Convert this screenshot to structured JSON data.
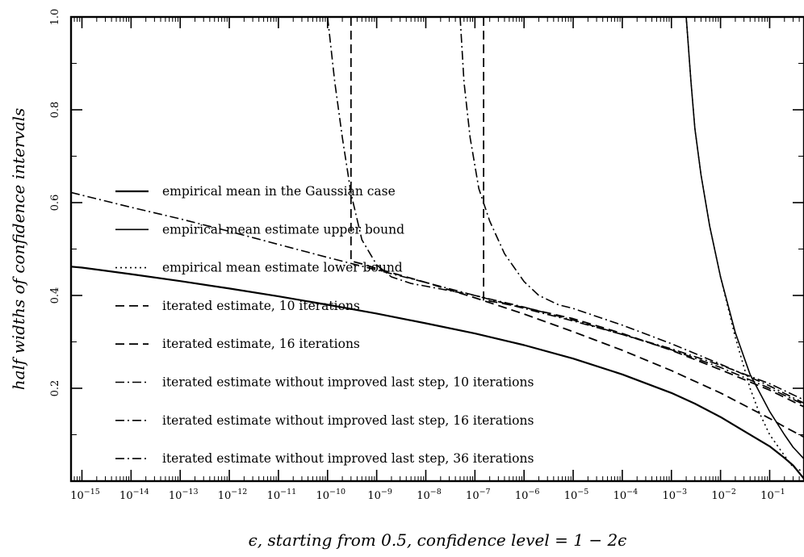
{
  "chart_data": {
    "type": "line",
    "title": "",
    "xlabel": "ϵ, starting from 0.5, confidence level = 1 − 2ϵ",
    "ylabel": "half widths of confidence intervals",
    "x_scale": "log",
    "xlim": [
      6e-16,
      0.5
    ],
    "ylim": [
      0.0,
      1.0
    ],
    "x_ticks": [
      {
        "base": "10",
        "exp": "−15",
        "value": 1e-15
      },
      {
        "base": "10",
        "exp": "−14",
        "value": 1e-14
      },
      {
        "base": "10",
        "exp": "−13",
        "value": 1e-13
      },
      {
        "base": "10",
        "exp": "−12",
        "value": 1e-12
      },
      {
        "base": "10",
        "exp": "−11",
        "value": 1e-11
      },
      {
        "base": "10",
        "exp": "−10",
        "value": 1e-10
      },
      {
        "base": "10",
        "exp": "−9",
        "value": 1e-09
      },
      {
        "base": "10",
        "exp": "−8",
        "value": 1e-08
      },
      {
        "base": "10",
        "exp": "−7",
        "value": 1e-07
      },
      {
        "base": "10",
        "exp": "−6",
        "value": 1e-06
      },
      {
        "base": "10",
        "exp": "−5",
        "value": 1e-05
      },
      {
        "base": "10",
        "exp": "−4",
        "value": 0.0001
      },
      {
        "base": "10",
        "exp": "−3",
        "value": 0.001
      },
      {
        "base": "10",
        "exp": "−2",
        "value": 0.01
      },
      {
        "base": "10",
        "exp": "−1",
        "value": 0.1
      }
    ],
    "y_ticks": [
      {
        "label": "0.2",
        "value": 0.2
      },
      {
        "label": "0.4",
        "value": 0.4
      },
      {
        "label": "0.6",
        "value": 0.6
      },
      {
        "label": "0.8",
        "value": 0.8
      },
      {
        "label": "1.0",
        "value": 1.0
      }
    ],
    "legend_position": "left",
    "grid": false,
    "series": [
      {
        "name": "empirical mean in the Gaussian case",
        "dash": "solid",
        "width": 2.2,
        "points": [
          [
            6e-16,
            0.462
          ],
          [
            1e-15,
            0.46
          ],
          [
            1e-14,
            0.446
          ],
          [
            1e-13,
            0.431
          ],
          [
            1e-12,
            0.415
          ],
          [
            1e-11,
            0.398
          ],
          [
            1e-10,
            0.38
          ],
          [
            1e-09,
            0.361
          ],
          [
            1e-08,
            0.34
          ],
          [
            1e-07,
            0.318
          ],
          [
            1e-06,
            0.293
          ],
          [
            1e-05,
            0.264
          ],
          [
            0.0001,
            0.23
          ],
          [
            0.001,
            0.19
          ],
          [
            0.003,
            0.167
          ],
          [
            0.01,
            0.138
          ],
          [
            0.03,
            0.108
          ],
          [
            0.1,
            0.075
          ],
          [
            0.2,
            0.05
          ],
          [
            0.3,
            0.034
          ],
          [
            0.5,
            0.005
          ]
        ]
      },
      {
        "name": "empirical mean estimate upper bound",
        "dash": "solid",
        "width": 1.6,
        "points": [
          [
            0.002,
            1.0
          ],
          [
            0.0025,
            0.86
          ],
          [
            0.003,
            0.76
          ],
          [
            0.004,
            0.66
          ],
          [
            0.006,
            0.55
          ],
          [
            0.01,
            0.44
          ],
          [
            0.02,
            0.32
          ],
          [
            0.04,
            0.23
          ],
          [
            0.1,
            0.15
          ],
          [
            0.2,
            0.1
          ],
          [
            0.3,
            0.073
          ],
          [
            0.5,
            0.048
          ]
        ]
      },
      {
        "name": "empirical mean estimate lower bound",
        "dash": "dot",
        "width": 1.6,
        "points": [
          [
            0.002,
            1.0
          ],
          [
            0.0025,
            0.86
          ],
          [
            0.003,
            0.76
          ],
          [
            0.004,
            0.66
          ],
          [
            0.006,
            0.55
          ],
          [
            0.01,
            0.44
          ],
          [
            0.02,
            0.31
          ],
          [
            0.04,
            0.2
          ],
          [
            0.06,
            0.15
          ],
          [
            0.1,
            0.1
          ],
          [
            0.2,
            0.055
          ],
          [
            0.3,
            0.03
          ],
          [
            0.5,
            0.02
          ]
        ]
      },
      {
        "name": "iterated estimate, 10 iterations",
        "dash": "dash",
        "width": 1.8,
        "points": [
          [
            3e-10,
            1.0
          ],
          [
            3e-10,
            0.474
          ],
          [
            5e-10,
            0.468
          ],
          [
            1e-09,
            0.458
          ],
          [
            1e-08,
            0.428
          ],
          [
            1e-07,
            0.395
          ],
          [
            1e-06,
            0.36
          ],
          [
            1e-05,
            0.322
          ],
          [
            0.0001,
            0.282
          ],
          [
            0.001,
            0.238
          ],
          [
            0.01,
            0.19
          ],
          [
            0.1,
            0.135
          ],
          [
            0.2,
            0.117
          ],
          [
            0.5,
            0.095
          ]
        ]
      },
      {
        "name": "iterated estimate, 16 iterations",
        "dash": "dash",
        "width": 1.8,
        "points": [
          [
            1.5e-07,
            1.0
          ],
          [
            1.5e-07,
            0.39
          ],
          [
            2e-07,
            0.388
          ],
          [
            1e-06,
            0.374
          ],
          [
            1e-05,
            0.35
          ],
          [
            0.0001,
            0.318
          ],
          [
            0.001,
            0.282
          ],
          [
            0.01,
            0.24
          ],
          [
            0.1,
            0.196
          ],
          [
            0.5,
            0.16
          ]
        ]
      },
      {
        "name": "iterated estimate without improved last step, 10 iterations",
        "dash": "dashdot",
        "width": 1.6,
        "points": [
          [
            1e-10,
            1.0
          ],
          [
            1.4e-10,
            0.86
          ],
          [
            2e-10,
            0.74
          ],
          [
            3e-10,
            0.62
          ],
          [
            5e-10,
            0.52
          ],
          [
            1e-09,
            0.466
          ],
          [
            2e-09,
            0.44
          ],
          [
            5e-09,
            0.426
          ],
          [
            1e-08,
            0.42
          ],
          [
            1e-07,
            0.4
          ],
          [
            1e-06,
            0.375
          ],
          [
            1e-05,
            0.347
          ],
          [
            0.0001,
            0.316
          ],
          [
            0.001,
            0.283
          ],
          [
            0.01,
            0.245
          ],
          [
            0.1,
            0.2
          ],
          [
            0.5,
            0.165
          ]
        ]
      },
      {
        "name": "iterated estimate without improved last step, 16 iterations",
        "dash": "dashdot",
        "width": 1.6,
        "points": [
          [
            5e-08,
            1.0
          ],
          [
            6e-08,
            0.86
          ],
          [
            8e-08,
            0.74
          ],
          [
            1.2e-07,
            0.63
          ],
          [
            2e-07,
            0.56
          ],
          [
            4e-07,
            0.49
          ],
          [
            1e-06,
            0.43
          ],
          [
            2e-06,
            0.4
          ],
          [
            5e-06,
            0.38
          ],
          [
            1e-05,
            0.372
          ],
          [
            0.0001,
            0.336
          ],
          [
            0.001,
            0.296
          ],
          [
            0.01,
            0.252
          ],
          [
            0.1,
            0.205
          ],
          [
            0.5,
            0.168
          ]
        ]
      },
      {
        "name": "iterated estimate without improved last step, 36 iterations",
        "dash": "dashdot",
        "width": 1.6,
        "points": [
          [
            6e-16,
            0.622
          ],
          [
            1e-15,
            0.616
          ],
          [
            1e-14,
            0.59
          ],
          [
            1e-13,
            0.565
          ],
          [
            1e-12,
            0.538
          ],
          [
            1e-11,
            0.51
          ],
          [
            1e-10,
            0.482
          ],
          [
            1e-09,
            0.455
          ],
          [
            1e-08,
            0.428
          ],
          [
            1e-07,
            0.4
          ],
          [
            1e-06,
            0.372
          ],
          [
            1e-05,
            0.345
          ],
          [
            0.0001,
            0.316
          ],
          [
            0.001,
            0.285
          ],
          [
            0.01,
            0.25
          ],
          [
            0.1,
            0.21
          ],
          [
            0.5,
            0.175
          ]
        ]
      }
    ]
  }
}
